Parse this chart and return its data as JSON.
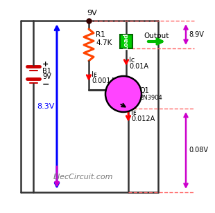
{
  "bg_color": "#ffffff",
  "title": "ElecCircuit.com",
  "supply_voltage": "9V",
  "output_label": "Output",
  "output_voltage": "8.9V",
  "vce_voltage": "0.08V",
  "battery_label": "B1",
  "battery_voltage": "9V",
  "resistor_label": "R1",
  "resistor_value": "4.7K",
  "transistor_label": "Q1",
  "transistor_model": "2N3904",
  "ib_value": "0.001A",
  "ic_value": "0.01A",
  "ie_value": "0.012A",
  "vb_label": "8.3V",
  "blue_color": "#0000ff",
  "purple_color": "#cc00cc",
  "red_color": "#ff0000",
  "green_color": "#00bb00",
  "resistor_color": "#ff4400",
  "transistor_color": "#ff44ff",
  "load_color": "#00cc00",
  "battery_color": "#cc0000",
  "dot_color": "#330000",
  "wire_color": "#555555",
  "dashed_color": "#ff6666"
}
